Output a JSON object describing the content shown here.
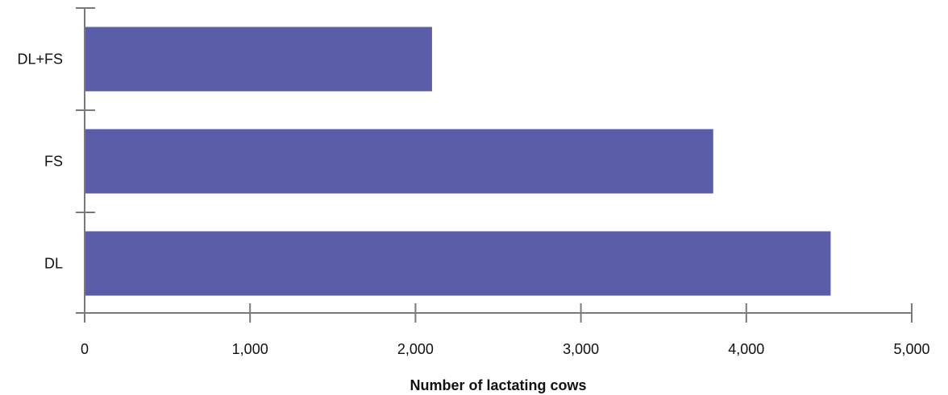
{
  "chart_data": {
    "type": "bar",
    "orientation": "horizontal",
    "categories": [
      "DL+FS",
      "FS",
      "DL"
    ],
    "values": [
      2100,
      3800,
      4510
    ],
    "xlabel": "Number of lactating cows",
    "ylabel": "",
    "xlim": [
      0,
      5000
    ],
    "xticks": [
      0,
      1000,
      2000,
      3000,
      4000,
      5000
    ],
    "xtick_labels": [
      "0",
      "1,000",
      "2,000",
      "3,000",
      "4,000",
      "5,000"
    ],
    "grid": false,
    "legend": "none",
    "bar_color": "#5a5ea9",
    "axis_color": "#7a7a7a"
  }
}
